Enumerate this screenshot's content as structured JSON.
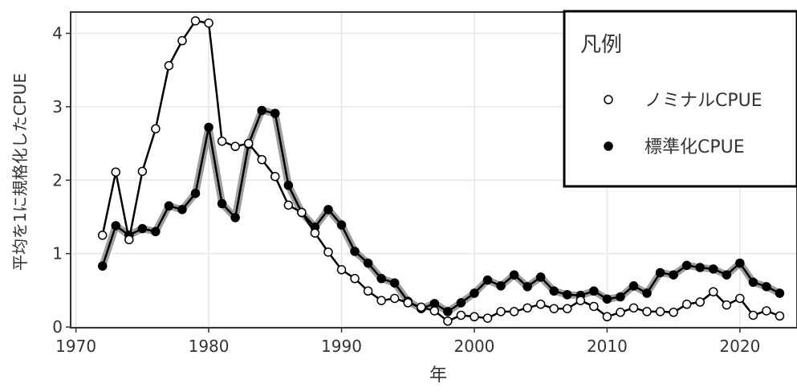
{
  "chart_data": {
    "type": "line",
    "x_label": "年",
    "y_label": "平均を1に規格化したCPUE",
    "legend_title": "凡例",
    "legend": "top-right",
    "grid": true,
    "x": [
      1972,
      1973,
      1974,
      1975,
      1976,
      1977,
      1978,
      1979,
      1980,
      1981,
      1982,
      1983,
      1984,
      1985,
      1986,
      1987,
      1988,
      1989,
      1990,
      1991,
      1992,
      1993,
      1994,
      1995,
      1996,
      1997,
      1998,
      1999,
      2000,
      2001,
      2002,
      2003,
      2004,
      2005,
      2006,
      2007,
      2008,
      2009,
      2010,
      2011,
      2012,
      2013,
      2014,
      2015,
      2016,
      2017,
      2018,
      2019,
      2020,
      2021,
      2022,
      2023
    ],
    "series": [
      {
        "name": "ノミナルCPUE",
        "color": "#000000",
        "marker": "open",
        "values": [
          1.25,
          2.11,
          1.19,
          2.12,
          2.7,
          3.56,
          3.9,
          4.17,
          4.14,
          2.53,
          2.46,
          2.5,
          2.28,
          2.05,
          1.66,
          1.56,
          1.28,
          1.02,
          0.78,
          0.66,
          0.49,
          0.36,
          0.39,
          0.33,
          0.27,
          0.22,
          0.08,
          0.16,
          0.14,
          0.12,
          0.21,
          0.21,
          0.26,
          0.31,
          0.25,
          0.25,
          0.36,
          0.28,
          0.14,
          0.2,
          0.26,
          0.21,
          0.21,
          0.2,
          0.31,
          0.34,
          0.48,
          0.3,
          0.39,
          0.16,
          0.22,
          0.15
        ]
      },
      {
        "name": "標準化CPUE",
        "color": "#000000",
        "marker": "filled",
        "values": [
          0.83,
          1.38,
          1.25,
          1.34,
          1.3,
          1.65,
          1.6,
          1.82,
          2.72,
          1.68,
          1.49,
          2.49,
          2.95,
          2.91,
          1.93,
          1.56,
          1.36,
          1.6,
          1.39,
          1.03,
          0.87,
          0.66,
          0.6,
          0.35,
          0.25,
          0.32,
          0.21,
          0.33,
          0.46,
          0.64,
          0.56,
          0.71,
          0.55,
          0.68,
          0.49,
          0.44,
          0.43,
          0.49,
          0.38,
          0.41,
          0.56,
          0.46,
          0.74,
          0.71,
          0.84,
          0.81,
          0.79,
          0.71,
          0.87,
          0.61,
          0.55,
          0.46
        ]
      }
    ],
    "xlim": [
      1969.6,
      2024.3
    ],
    "xticks": [
      1970,
      1980,
      1990,
      2000,
      2010,
      2020
    ],
    "ylim": [
      -0.01,
      4.29
    ],
    "yticks": [
      0,
      1,
      2,
      3,
      4
    ]
  }
}
